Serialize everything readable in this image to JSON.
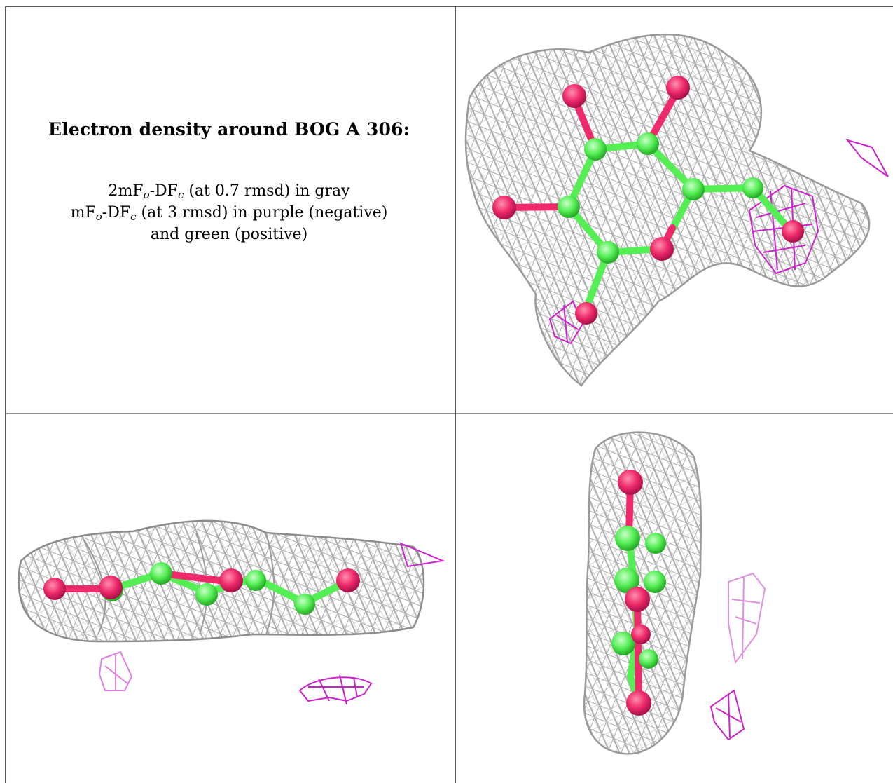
{
  "caption": {
    "title": "Electron density around BOG A 306:",
    "line1": {
      "prefix": "2mF",
      "sub1": "o",
      "mid": "-DF",
      "sub2": "c",
      "suffix": " (at 0.7 rmsd) in gray"
    },
    "line2": {
      "prefix": "mF",
      "sub1": "o",
      "mid": "-DF",
      "sub2": "c",
      "suffix": " (at 3 rmsd) in purple (negative)"
    },
    "line3": "and green (positive)"
  },
  "legend_colors": {
    "map_2fofc": "#9a9a9a",
    "map_fofc_negative": "#cc22cc",
    "map_fofc_positive": "#22cc22",
    "carbon": "#55ee55",
    "oxygen": "#ee2a6a"
  },
  "panels": [
    {
      "view": "top",
      "name": "panel-top-right"
    },
    {
      "view": "side",
      "name": "panel-bottom-left"
    },
    {
      "view": "edge",
      "name": "panel-bottom-right"
    }
  ]
}
